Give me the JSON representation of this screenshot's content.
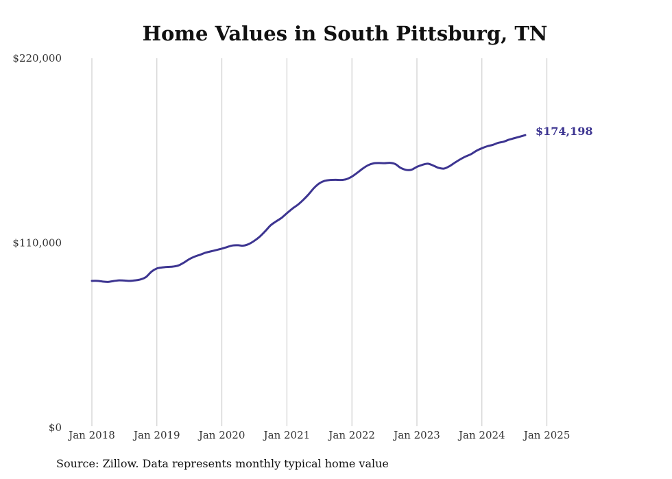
{
  "chart_data": {
    "type": "line",
    "title": "Home Values in South Pittsburg, TN",
    "xlabel": "",
    "ylabel": "",
    "ylim": [
      0,
      220000
    ],
    "y_ticks": [
      {
        "value": 0,
        "label": "$0"
      },
      {
        "value": 110000,
        "label": "$110,000"
      },
      {
        "value": 220000,
        "label": "$220,000"
      }
    ],
    "x_ticks": [
      "Jan 2018",
      "Jan 2019",
      "Jan 2020",
      "Jan 2021",
      "Jan 2022",
      "Jan 2023",
      "Jan 2024",
      "Jan 2025"
    ],
    "x_start": "Jan 2018",
    "x_end": "Oct 2025",
    "gridlines": "vertical",
    "series": [
      {
        "name": "Typical home value",
        "color": "#3d3591",
        "end_label": "$174,198",
        "x": [
          0,
          1,
          2,
          3,
          4,
          5,
          6,
          7,
          8,
          9,
          10,
          11,
          12,
          13,
          14,
          15,
          16,
          17,
          18,
          19,
          20,
          21,
          22,
          23,
          24,
          25,
          26,
          27,
          28,
          29,
          30,
          31,
          32,
          33,
          34,
          35,
          36,
          37,
          38,
          39,
          40,
          41,
          42,
          43,
          44,
          45,
          46,
          47,
          48,
          49,
          50,
          51,
          52,
          53,
          54,
          55,
          56,
          57,
          58,
          59,
          60,
          61,
          62,
          63,
          64,
          65,
          66,
          67,
          68,
          69,
          70,
          71,
          72,
          73,
          74,
          75,
          76,
          77,
          78,
          79,
          80,
          81,
          82,
          83,
          84,
          85,
          86,
          87,
          88,
          89,
          90,
          91,
          92,
          93
        ],
        "values": [
          87400,
          87400,
          87000,
          86800,
          87300,
          87700,
          87600,
          87400,
          87700,
          88300,
          89700,
          92900,
          94800,
          95400,
          95700,
          95900,
          96600,
          98300,
          100400,
          101900,
          103000,
          104200,
          105000,
          105800,
          106600,
          107600,
          108500,
          108600,
          108400,
          109400,
          111300,
          113800,
          117000,
          120500,
          122800,
          124900,
          127700,
          130400,
          132700,
          135600,
          138900,
          142700,
          145500,
          147000,
          147500,
          147600,
          147500,
          148000,
          149500,
          151800,
          154300,
          156300,
          157400,
          157600,
          157500,
          157700,
          157000,
          154700,
          153500,
          153600,
          155300,
          156500,
          157200,
          156100,
          154700,
          154300,
          155700,
          157800,
          159800,
          161500,
          162900,
          164900,
          166400,
          167600,
          168400,
          169600,
          170300,
          171500,
          172400,
          173300,
          174198,
          null,
          null,
          null,
          null,
          null,
          null,
          null,
          null,
          null,
          null,
          null,
          null,
          null
        ]
      }
    ],
    "source": "Source: Zillow. Data represents monthly typical home value"
  }
}
